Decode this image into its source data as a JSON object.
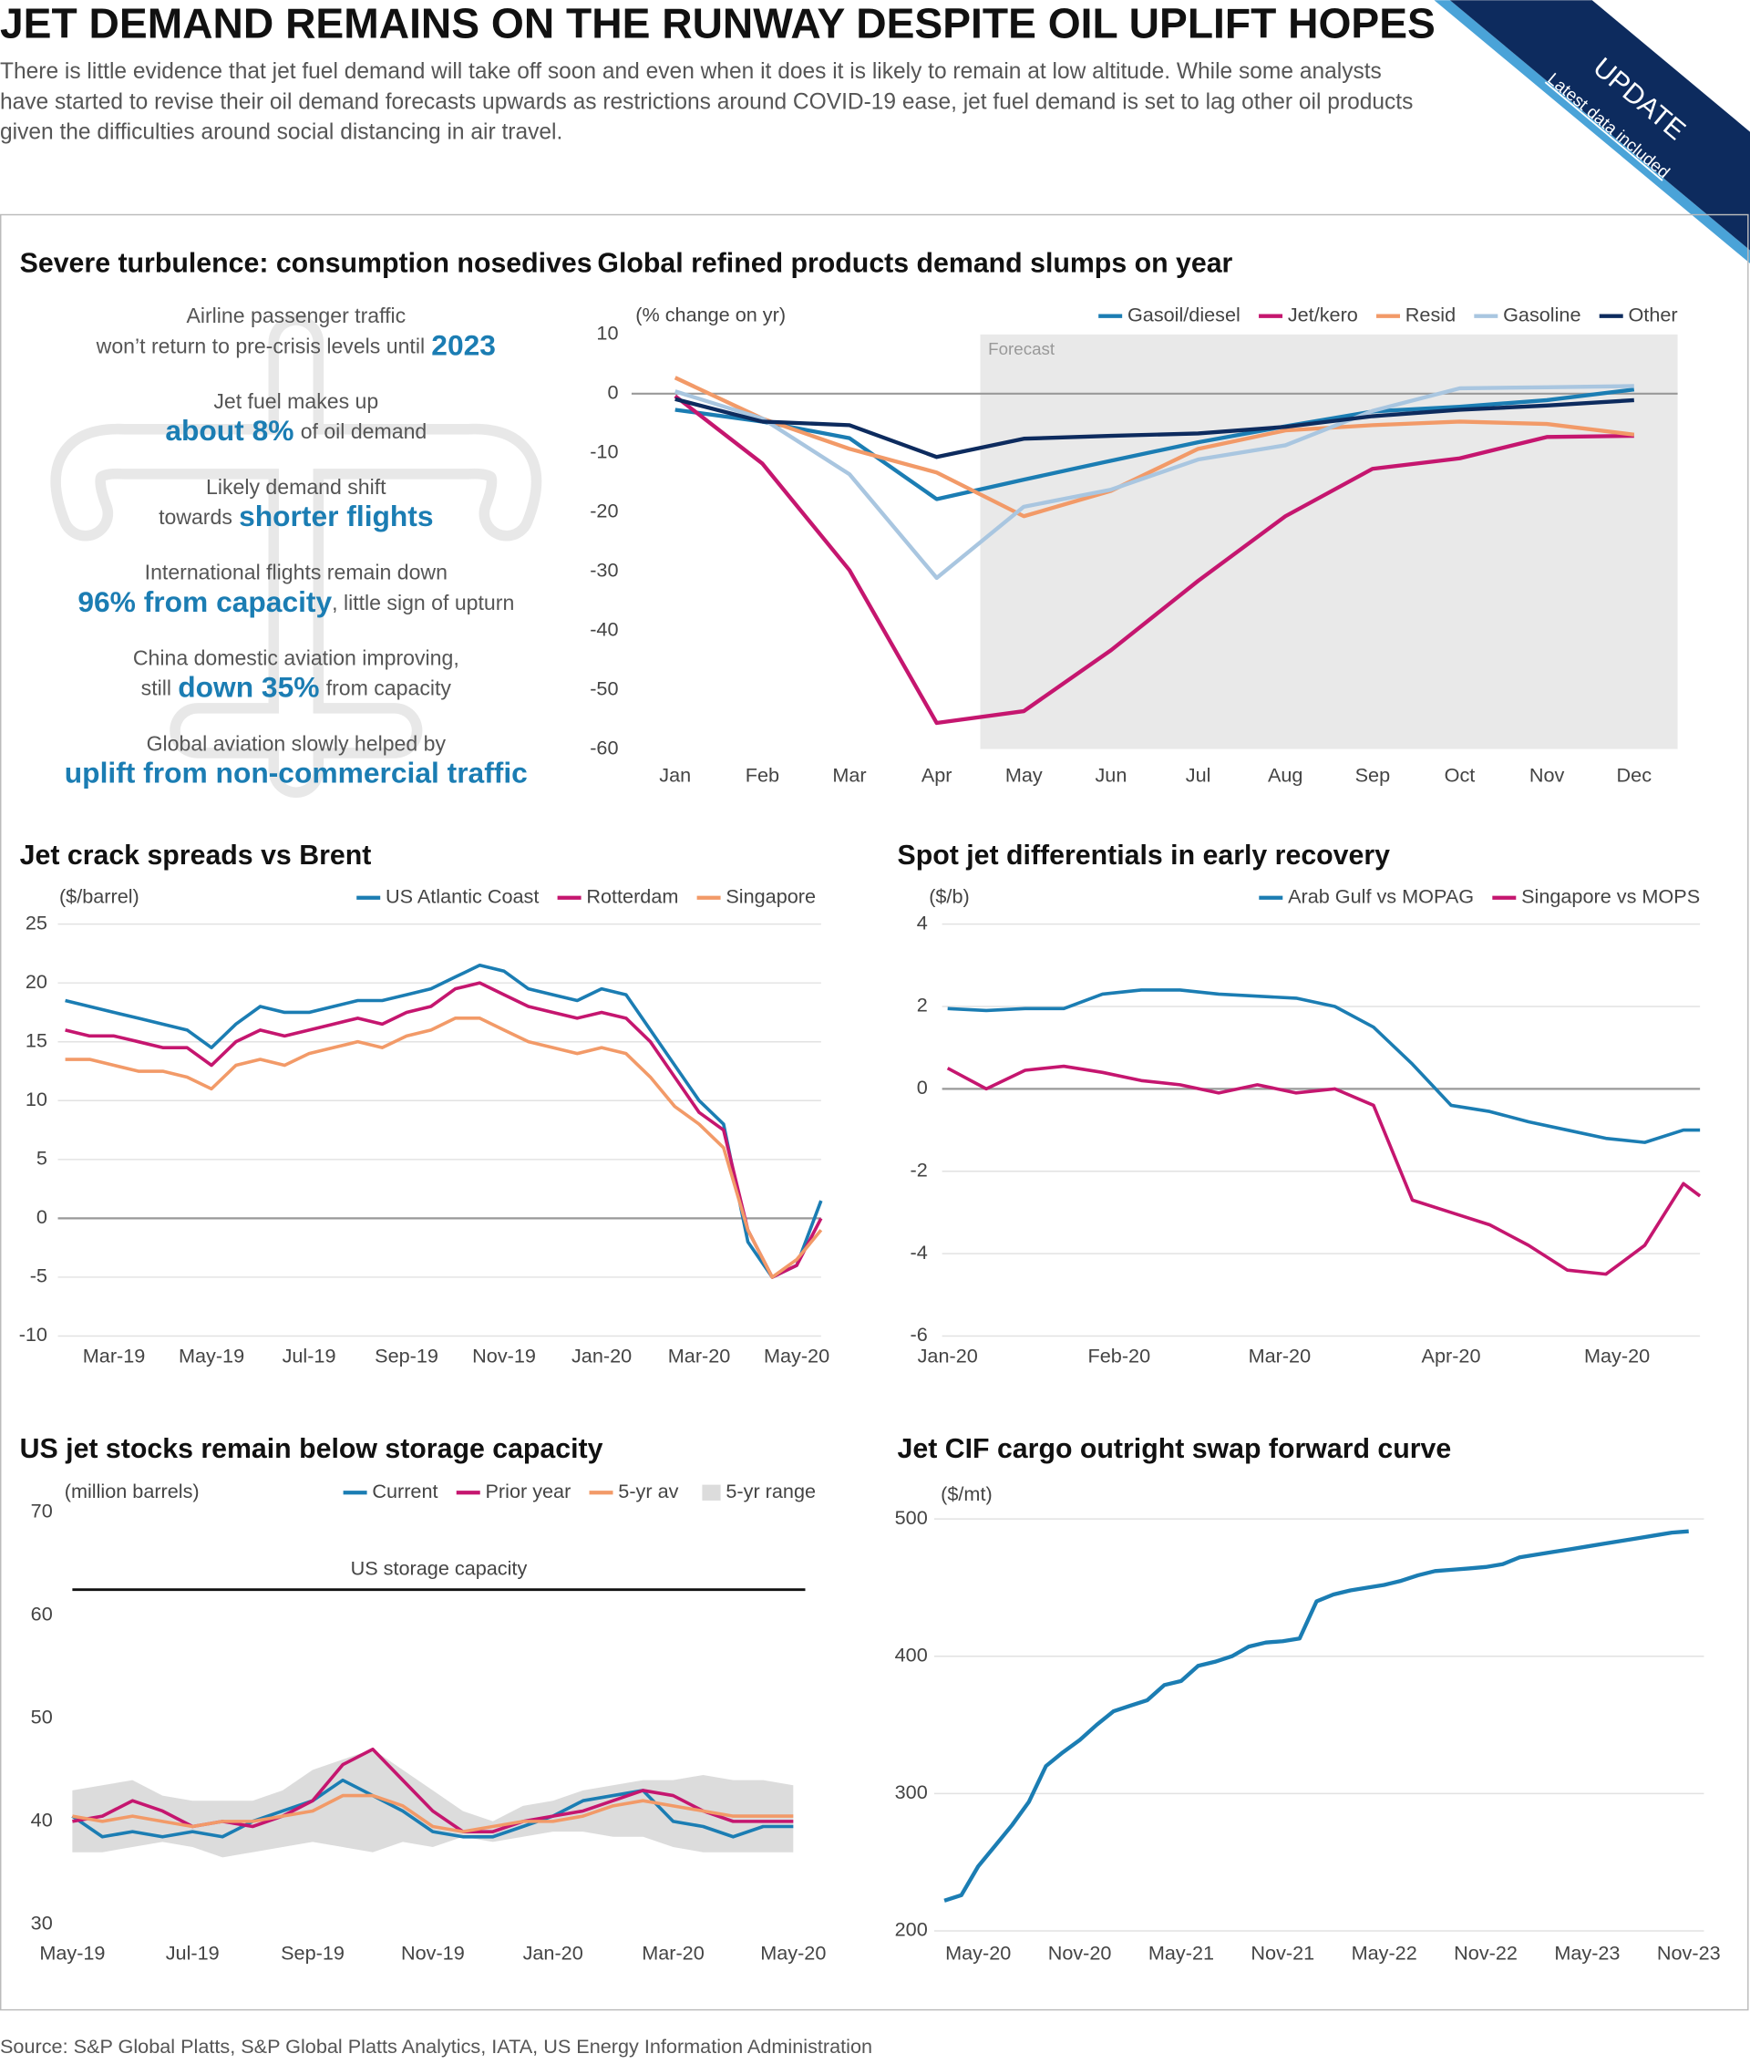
{
  "header": {
    "title": "JET DEMAND REMAINS ON THE RUNWAY DESPITE OIL UPLIFT HOPES",
    "subtitle_lines": [
      "There is little evidence that jet fuel demand will take off soon and even when it does it is likely to remain at low altitude. While some analysts",
      "have started to revise their oil demand forecasts upwards as restrictions around COVID-19 ease, jet fuel demand is set to lag other oil products",
      "given the difficulties around social distancing in air travel."
    ],
    "badge": "UPDATE",
    "badge_note": "Latest data included"
  },
  "panel": {
    "title": "Severe turbulence: consumption nosedives",
    "items": [
      {
        "lead": "Airline passenger traffic",
        "pre": "won’t return to pre-crisis levels until",
        "highlight": "2023"
      },
      {
        "lead": "Jet fuel makes up",
        "highlight": "about 8%",
        "post": "of oil demand"
      },
      {
        "lead": "Likely demand shift",
        "pre": "towards",
        "highlight": "shorter flights"
      },
      {
        "lead": "International flights remain down",
        "highlight": "96% from capacity",
        "post": ", little sign of upturn"
      },
      {
        "lead": "China domestic aviation improving,",
        "pre": "still",
        "highlight": "down 35%",
        "post": "from capacity"
      },
      {
        "lead": "Global aviation slowly helped by",
        "highlight": "uplift from non-commercial traffic"
      }
    ]
  },
  "chart_data": [
    {
      "type": "line",
      "title": "Global refined products demand slumps on year",
      "y_label": "(% change on yr)",
      "categories": [
        "Jan",
        "Feb",
        "Mar",
        "Apr",
        "May",
        "Jun",
        "Jul",
        "Aug",
        "Sep",
        "Oct",
        "Nov",
        "Dec"
      ],
      "ylim": [
        -60,
        10
      ],
      "yticks": [
        -60,
        -50,
        -40,
        -30,
        -20,
        -10,
        0,
        10
      ],
      "grid": false,
      "zero_line": true,
      "forecast": {
        "label": "Forecast",
        "start": "May"
      },
      "series": [
        {
          "name": "Gasoil/diesel",
          "color": "#1b7db3",
          "values": [
            -2.7,
            -4.7,
            -7.5,
            -17.8,
            -14.5,
            -11.3,
            -8.2,
            -5.5,
            -3,
            -2.2,
            -1.1,
            0.7
          ]
        },
        {
          "name": "Jet/kero",
          "color": "#c5166f",
          "values": [
            -0.4,
            -11.8,
            -29.8,
            -55.6,
            -53.6,
            -43.3,
            -31.6,
            -20.7,
            -12.7,
            -10.9,
            -7.3,
            -7.1
          ]
        },
        {
          "name": "Resid",
          "color": "#f29a68",
          "values": [
            2.7,
            -4.2,
            -9.3,
            -13.3,
            -20.7,
            -16.4,
            -9.3,
            -6.2,
            -5.3,
            -4.7,
            -5.1,
            -6.9
          ]
        },
        {
          "name": "Gasoline",
          "color": "#a9c6e0",
          "values": [
            0.4,
            -4.2,
            -13.6,
            -31.1,
            -19.1,
            -16.2,
            -11.1,
            -8.7,
            -2.9,
            0.9,
            1.1,
            1.3
          ]
        },
        {
          "name": "Other",
          "color": "#0d2b5e",
          "values": [
            -0.9,
            -4.7,
            -5.3,
            -10.7,
            -7.6,
            -7.1,
            -6.7,
            -5.6,
            -3.8,
            -2.7,
            -2,
            -1.1
          ]
        }
      ]
    },
    {
      "type": "line",
      "title": "Jet crack spreads vs Brent",
      "y_label": "($/barrel)",
      "x": [
        2,
        2.5,
        3,
        3.5,
        4,
        4.5,
        5,
        5.5,
        6,
        6.5,
        7,
        7.5,
        8,
        8.5,
        9,
        9.5,
        10,
        10.5,
        11,
        11.5,
        12,
        12.5,
        13,
        13.5,
        14,
        14.5,
        15,
        15.5,
        16,
        16.5,
        17,
        17.5
      ],
      "xlim": [
        1.85,
        17.5
      ],
      "xticks": [
        {
          "value": 3,
          "label": "Mar-19"
        },
        {
          "value": 5,
          "label": "May-19"
        },
        {
          "value": 7,
          "label": "Jul-19"
        },
        {
          "value": 9,
          "label": "Sep-19"
        },
        {
          "value": 11,
          "label": "Nov-19"
        },
        {
          "value": 13,
          "label": "Jan-20"
        },
        {
          "value": 15,
          "label": "Mar-20"
        },
        {
          "value": 17,
          "label": "May-20"
        }
      ],
      "ylim": [
        -10,
        25
      ],
      "yticks": [
        -10,
        -5,
        0,
        5,
        10,
        15,
        20,
        25
      ],
      "grid": true,
      "zero_line": true,
      "series": [
        {
          "name": "US Atlantic Coast",
          "color": "#1b7db3",
          "values": [
            18.5,
            18,
            17.5,
            17,
            16.5,
            16,
            14.5,
            16.5,
            18,
            17.5,
            17.5,
            18,
            18.5,
            18.5,
            19,
            19.5,
            20.5,
            21.5,
            21,
            19.5,
            19,
            18.5,
            19.5,
            19,
            16,
            13,
            10,
            8,
            -2,
            -5,
            -4,
            1.5
          ]
        },
        {
          "name": "Rotterdam",
          "color": "#c5166f",
          "values": [
            16,
            15.5,
            15.5,
            15,
            14.5,
            14.5,
            13,
            15,
            16,
            15.5,
            16,
            16.5,
            17,
            16.5,
            17.5,
            18,
            19.5,
            20,
            19,
            18,
            17.5,
            17,
            17.5,
            17,
            15,
            12,
            9,
            7.5,
            -1,
            -5,
            -4,
            0
          ]
        },
        {
          "name": "Singapore",
          "color": "#f29a68",
          "values": [
            13.5,
            13.5,
            13,
            12.5,
            12.5,
            12,
            11,
            13,
            13.5,
            13,
            14,
            14.5,
            15,
            14.5,
            15.5,
            16,
            17,
            17,
            16,
            15,
            14.5,
            14,
            14.5,
            14,
            12,
            9.5,
            8,
            6,
            -1,
            -5,
            -3.5,
            -1
          ]
        }
      ]
    },
    {
      "type": "line",
      "title": "Spot jet differentials in early recovery",
      "y_label": "($/b)",
      "x": [
        1,
        8,
        15,
        22,
        29,
        36,
        43,
        50,
        57,
        64,
        71,
        78,
        85,
        92,
        99,
        106,
        113,
        120,
        127,
        134,
        137
      ],
      "xlim": [
        0,
        137
      ],
      "xticks": [
        {
          "value": 1,
          "label": "Jan-20"
        },
        {
          "value": 32,
          "label": "Feb-20"
        },
        {
          "value": 61,
          "label": "Mar-20"
        },
        {
          "value": 92,
          "label": "Apr-20"
        },
        {
          "value": 122,
          "label": "May-20"
        }
      ],
      "ylim": [
        -6,
        4
      ],
      "yticks": [
        -6,
        -4,
        -2,
        0,
        2,
        4
      ],
      "grid": true,
      "zero_line": true,
      "series": [
        {
          "name": "Arab Gulf vs MOPAG",
          "color": "#1b7db3",
          "values": [
            1.95,
            1.9,
            1.95,
            1.95,
            2.3,
            2.4,
            2.4,
            2.3,
            2.25,
            2.2,
            2.0,
            1.5,
            0.6,
            -0.4,
            -0.55,
            -0.8,
            -1.0,
            -1.2,
            -1.3,
            -1.0,
            -1.0
          ]
        },
        {
          "name": "Singapore vs MOPS",
          "color": "#c5166f",
          "values": [
            0.5,
            0.0,
            0.45,
            0.55,
            0.4,
            0.2,
            0.1,
            -0.1,
            0.1,
            -0.1,
            0.0,
            -0.4,
            -2.7,
            -3.0,
            -3.3,
            -3.8,
            -4.4,
            -4.5,
            -3.8,
            -2.3,
            -2.6
          ]
        }
      ]
    },
    {
      "type": "line",
      "title": "US jet stocks remain below storage capacity",
      "y_label": "(million barrels)",
      "x": [
        5,
        5.5,
        6,
        6.5,
        7,
        7.5,
        8,
        8.5,
        9,
        9.5,
        10,
        10.5,
        11,
        11.5,
        12,
        12.5,
        13,
        13.5,
        14,
        14.5,
        15,
        15.5,
        16,
        16.5,
        17
      ],
      "xlim": [
        5,
        17.2
      ],
      "xticks": [
        {
          "value": 5,
          "label": "May-19"
        },
        {
          "value": 7,
          "label": "Jul-19"
        },
        {
          "value": 9,
          "label": "Sep-19"
        },
        {
          "value": 11,
          "label": "Nov-19"
        },
        {
          "value": 13,
          "label": "Jan-20"
        },
        {
          "value": 15,
          "label": "Mar-20"
        },
        {
          "value": 17,
          "label": "May-20"
        }
      ],
      "ylim": [
        30,
        70
      ],
      "yticks": [
        30,
        40,
        50,
        60,
        70
      ],
      "grid": false,
      "capacity": {
        "label": "US storage capacity",
        "value": 62.5
      },
      "series": [
        {
          "name": "Current",
          "color": "#1b7db3",
          "values": [
            40.5,
            38.5,
            39,
            38.5,
            39,
            38.5,
            40,
            41,
            42,
            44,
            42.5,
            41,
            39,
            38.5,
            38.5,
            39.5,
            40.5,
            42,
            42.5,
            43,
            40,
            39.5,
            38.5,
            39.5,
            39.5
          ]
        },
        {
          "name": "Prior year",
          "color": "#c5166f",
          "values": [
            40,
            40.5,
            42,
            41,
            39.5,
            40,
            39.5,
            40.5,
            42,
            45.5,
            47,
            44,
            41,
            39,
            39,
            40,
            40.5,
            41,
            42,
            43,
            42.5,
            41,
            40,
            40,
            40
          ]
        },
        {
          "name": "5-yr av",
          "color": "#f29a68",
          "values": [
            40.5,
            40,
            40.5,
            40,
            39.5,
            40,
            40,
            40.5,
            41,
            42.5,
            42.5,
            41.5,
            39.5,
            39,
            39.5,
            40,
            40,
            40.5,
            41.5,
            42,
            41.5,
            41,
            40.5,
            40.5,
            40.5
          ]
        },
        {
          "name": "5-yr range",
          "color": "#dcdcdc",
          "type": "band",
          "low": [
            37,
            37,
            37.5,
            38,
            37.5,
            36.5,
            37,
            37.5,
            38,
            37.5,
            37,
            38,
            37.5,
            38.5,
            38,
            38.5,
            39,
            39,
            38.5,
            38.5,
            37.5,
            37,
            37,
            37,
            37
          ],
          "high": [
            43,
            43.5,
            44,
            42.5,
            42,
            42,
            42,
            43,
            45,
            46,
            47,
            45,
            43,
            41,
            40,
            41.5,
            42,
            43,
            43.5,
            44,
            44,
            44.5,
            44,
            44,
            43.5
          ]
        }
      ]
    },
    {
      "type": "line",
      "title": "Jet CIF cargo outright swap forward curve",
      "y_label": "($/mt)",
      "x": [
        3,
        4,
        5,
        6,
        7,
        8,
        9,
        10,
        11,
        12,
        13,
        14,
        15,
        16,
        17,
        18,
        19,
        20,
        21,
        22,
        23,
        24,
        25,
        26,
        27,
        28,
        29,
        30,
        31,
        32,
        33,
        34,
        35,
        36,
        37,
        38,
        39,
        40,
        41,
        42,
        43,
        44,
        45,
        46,
        47
      ],
      "xlim": [
        2.4,
        47.9
      ],
      "xticks": [
        {
          "value": 5,
          "label": "May-20"
        },
        {
          "value": 11,
          "label": "Nov-20"
        },
        {
          "value": 17,
          "label": "May-21"
        },
        {
          "value": 23,
          "label": "Nov-21"
        },
        {
          "value": 29,
          "label": "May-22"
        },
        {
          "value": 35,
          "label": "Nov-22"
        },
        {
          "value": 41,
          "label": "May-23"
        },
        {
          "value": 47,
          "label": "Nov-23"
        }
      ],
      "ylim": [
        200,
        500
      ],
      "yticks": [
        200,
        300,
        400,
        500
      ],
      "grid": true,
      "series": [
        {
          "color": "#1b7db3",
          "values": [
            222,
            226,
            247,
            262,
            277,
            294,
            320,
            330,
            339,
            350,
            360,
            364,
            368,
            379,
            382,
            393,
            396,
            400,
            407,
            410,
            411,
            413,
            440,
            445,
            448,
            450,
            452,
            455,
            459,
            462,
            463,
            464,
            465,
            467,
            472,
            474,
            476,
            478,
            480,
            482,
            484,
            486,
            488,
            490,
            491
          ]
        }
      ]
    }
  ],
  "source": "Source: S&P Global Platts, S&P Global Platts Analytics, IATA, US Energy Information Administration"
}
